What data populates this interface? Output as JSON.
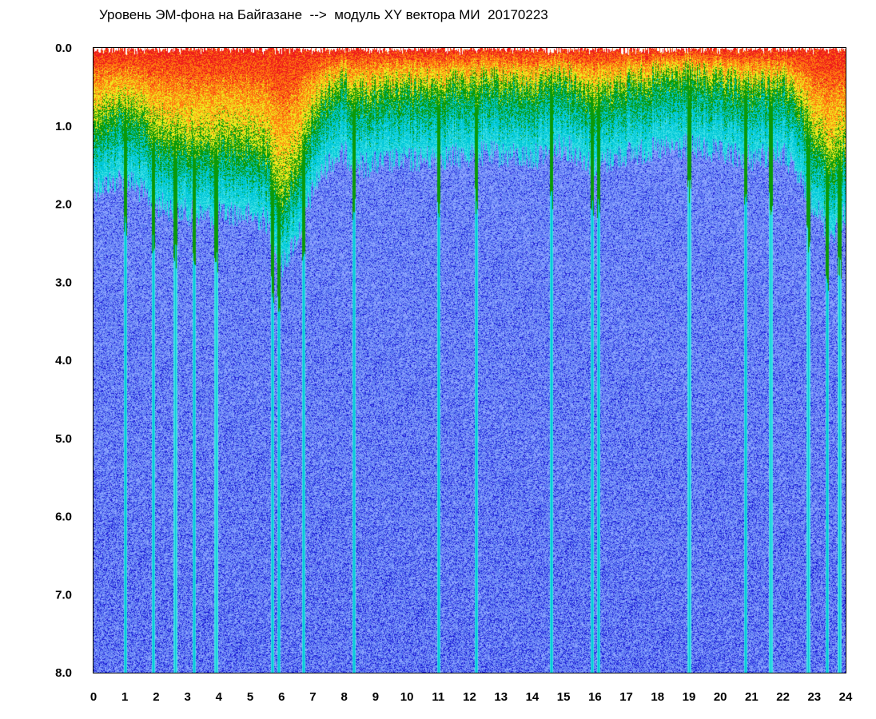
{
  "chart_data": {
    "type": "heatmap",
    "title": "Уровень ЭМ-фона на Байгазане  -->  модуль XY вектора МИ  20170223",
    "xlabel": "",
    "ylabel": "",
    "xlim": [
      0,
      24
    ],
    "ylim": [
      0,
      8
    ],
    "y_inverted": true,
    "x_ticks": [
      "0",
      "1",
      "2",
      "3",
      "4",
      "5",
      "6",
      "7",
      "8",
      "9",
      "10",
      "11",
      "12",
      "13",
      "14",
      "15",
      "16",
      "17",
      "18",
      "19",
      "20",
      "21",
      "22",
      "23",
      "24"
    ],
    "y_ticks": [
      "0.0",
      "1.0",
      "2.0",
      "3.0",
      "4.0",
      "5.0",
      "6.0",
      "7.0",
      "8.0"
    ],
    "grid": false,
    "colors": [
      "#1a1ad6",
      "#5b78f0",
      "#8fa6ff",
      "#3fe0e6",
      "#00c8d8",
      "#0a9a0a",
      "#f0e81e",
      "#ff7a10",
      "#ee1c1c"
    ],
    "bright_streak_hours": [
      1.0,
      1.9,
      2.6,
      3.2,
      3.9,
      5.7,
      5.9,
      6.7,
      8.3,
      11.0,
      12.2,
      14.6,
      15.9,
      16.1,
      19.0,
      20.8,
      21.6,
      22.8,
      23.4,
      23.8
    ],
    "hot_profile": [
      [
        0.0,
        0.9
      ],
      [
        1.0,
        0.75
      ],
      [
        2.0,
        1.1
      ],
      [
        3.0,
        1.2
      ],
      [
        3.8,
        1.25
      ],
      [
        4.5,
        1.2
      ],
      [
        5.5,
        1.3
      ],
      [
        6.0,
        1.9
      ],
      [
        6.5,
        1.5
      ],
      [
        7.0,
        0.9
      ],
      [
        7.5,
        0.55
      ],
      [
        8.0,
        0.45
      ],
      [
        8.5,
        0.6
      ],
      [
        9.5,
        0.55
      ],
      [
        11.0,
        0.5
      ],
      [
        12.5,
        0.45
      ],
      [
        14.0,
        0.5
      ],
      [
        15.0,
        0.35
      ],
      [
        16.0,
        0.6
      ],
      [
        17.0,
        0.45
      ],
      [
        18.0,
        0.4
      ],
      [
        19.0,
        0.35
      ],
      [
        20.0,
        0.45
      ],
      [
        21.0,
        0.5
      ],
      [
        22.0,
        0.45
      ],
      [
        23.0,
        1.1
      ],
      [
        23.5,
        1.5
      ],
      [
        24.0,
        1.2
      ]
    ]
  }
}
